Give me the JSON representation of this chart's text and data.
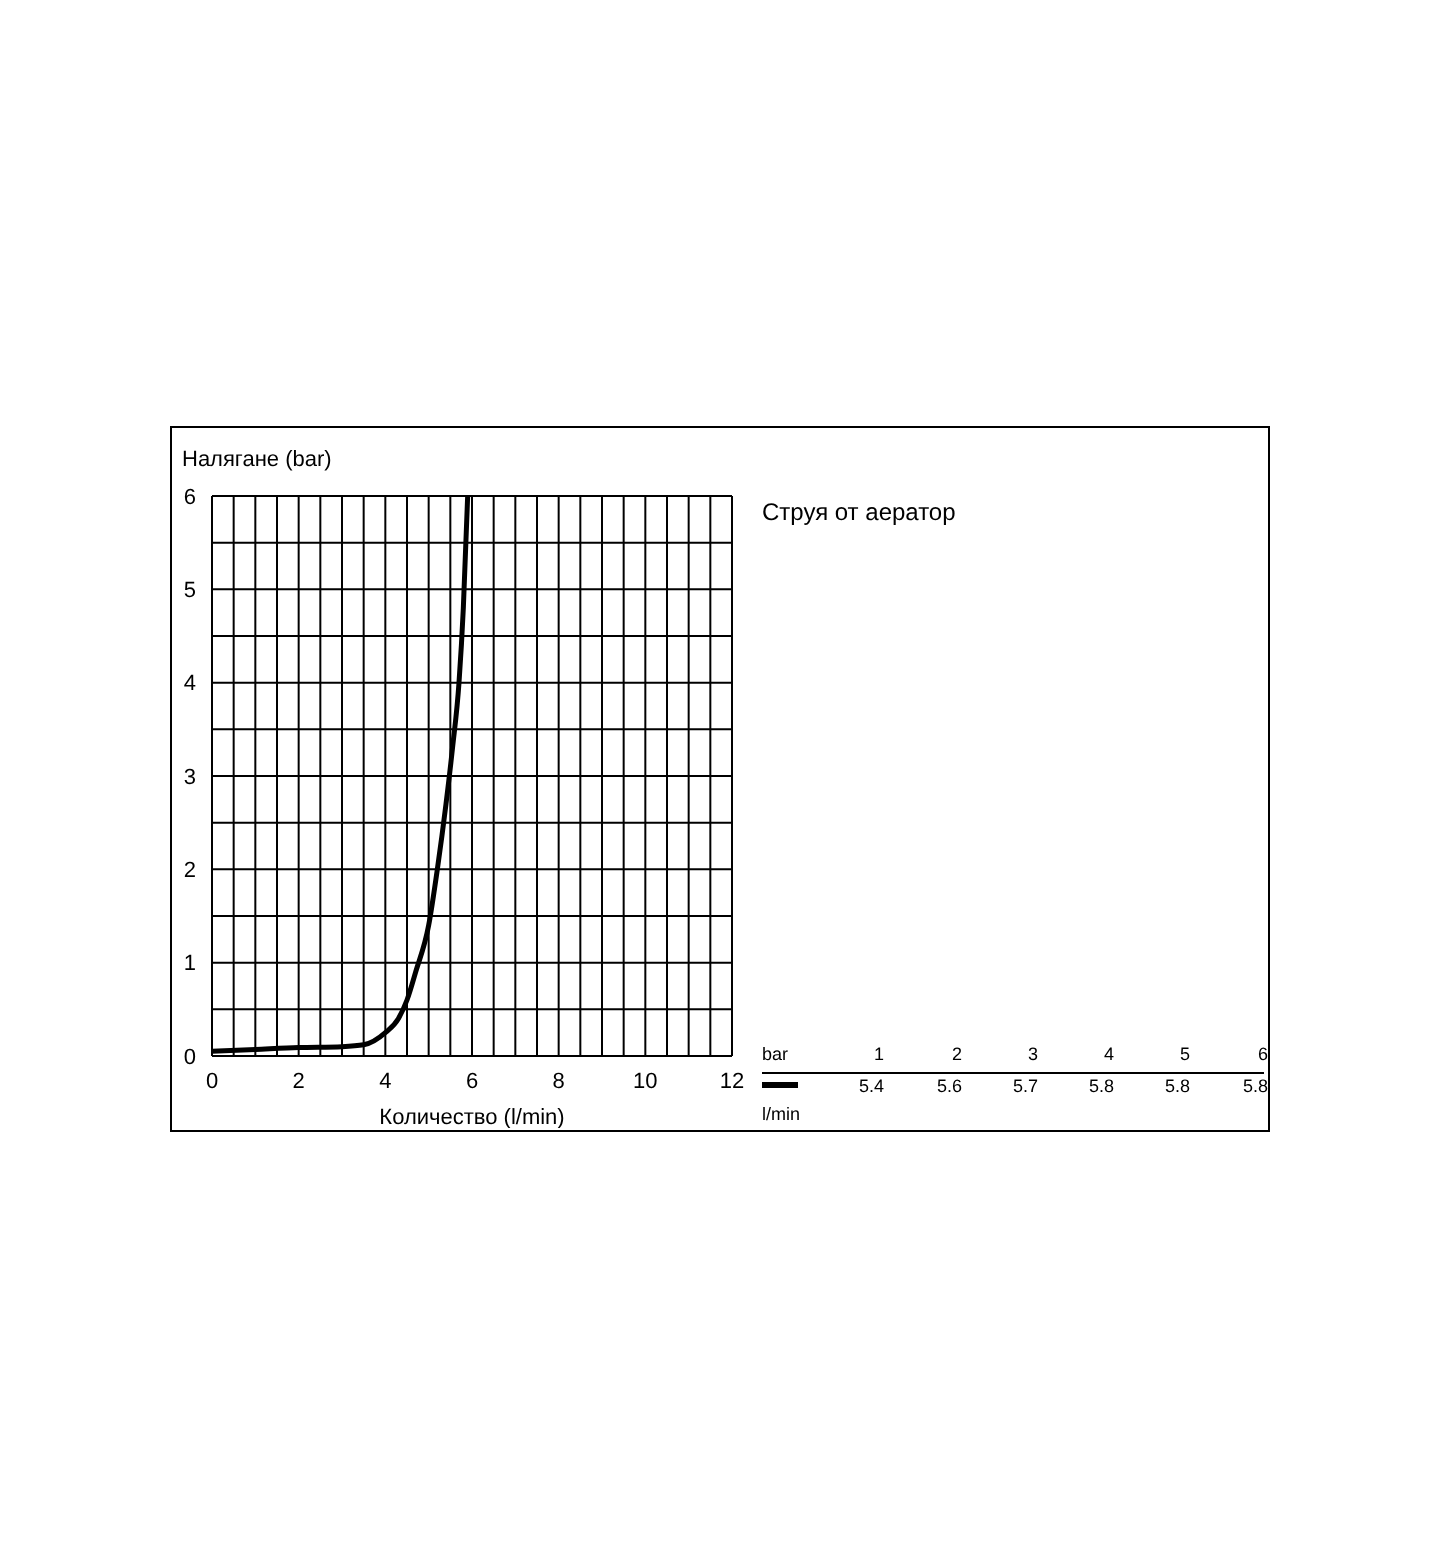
{
  "chart_data": {
    "type": "line",
    "xlabel": "Количество (l/min)",
    "ylabel": "Налягане (bar)",
    "x": [
      0,
      1,
      2,
      3,
      3.5,
      4,
      4.3,
      4.5,
      4.7,
      5,
      5.2,
      5.4,
      5.55,
      5.7,
      5.8,
      5.9
    ],
    "series": [
      {
        "color": "#000000",
        "values": [
          0.05,
          0.07,
          0.09,
          0.1,
          0.12,
          0.25,
          0.4,
          0.6,
          0.9,
          1.4,
          2,
          2.7,
          3.3,
          4,
          4.8,
          6
        ]
      }
    ],
    "xlim": [
      0,
      12
    ],
    "ylim": [
      0,
      6
    ],
    "xticks": [
      0,
      {
        "value": 0.5,
        "label": null
      },
      {
        "value": 1,
        "label": null
      },
      {
        "value": 1.5,
        "label": null
      },
      2,
      {
        "value": 2.5,
        "label": null
      },
      {
        "value": 3,
        "label": null
      },
      {
        "value": 3.5,
        "label": null
      },
      4,
      {
        "value": 4.5,
        "label": null
      },
      {
        "value": 5,
        "label": null
      },
      {
        "value": 5.5,
        "label": null
      },
      6,
      {
        "value": 6.5,
        "label": null
      },
      {
        "value": 7,
        "label": null
      },
      {
        "value": 7.5,
        "label": null
      },
      8,
      {
        "value": 8.5,
        "label": null
      },
      {
        "value": 9,
        "label": null
      },
      {
        "value": 9.5,
        "label": null
      },
      10,
      {
        "value": 10.5,
        "label": null
      },
      {
        "value": 11,
        "label": null
      },
      {
        "value": 11.5,
        "label": null
      },
      12
    ],
    "yticks": [
      0,
      {
        "value": 0.5,
        "label": null
      },
      1,
      {
        "value": 1.5,
        "label": null
      },
      2,
      {
        "value": 2.5,
        "label": null
      },
      3,
      {
        "value": 3.5,
        "label": null
      },
      4,
      {
        "value": 4.5,
        "label": null
      },
      5,
      {
        "value": 5.5,
        "label": null
      },
      6
    ],
    "grid": true,
    "annotations": [
      "Струя от аератор",
      "bar",
      "1",
      "2",
      "3",
      "4",
      "5",
      "6",
      "5.4",
      "5.6",
      "5.7",
      "5.8",
      "5.8",
      "5.8",
      "l/min"
    ]
  }
}
